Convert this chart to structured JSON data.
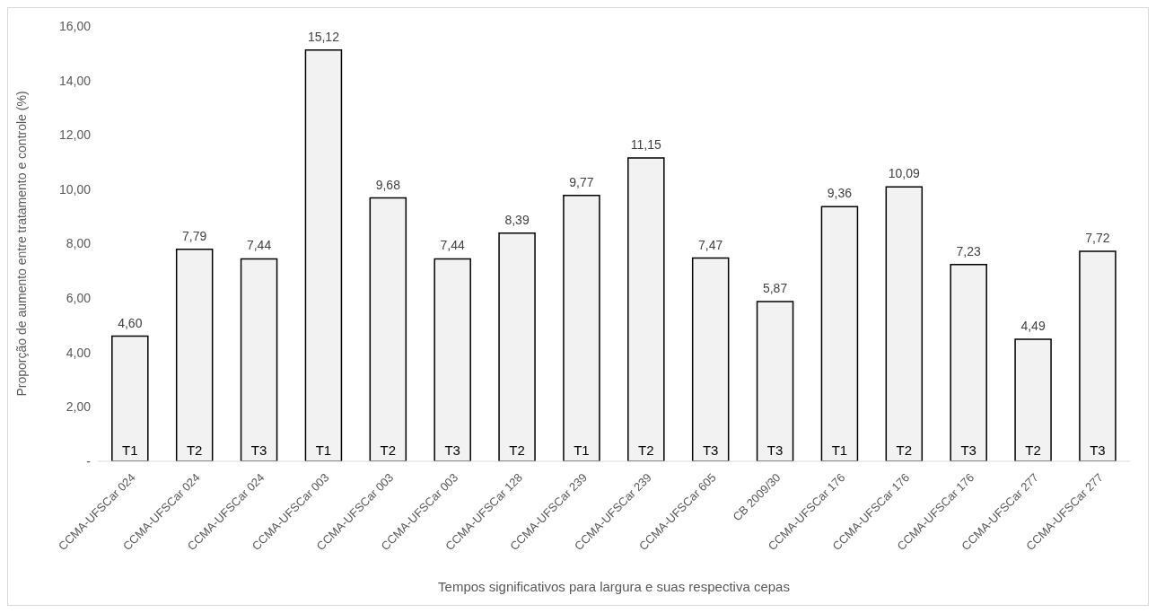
{
  "chart_data": {
    "type": "bar",
    "xlabel": "Tempos significativos para largura e suas respectiva cepas",
    "ylabel": "Proporção de aumento entre tratamento e controle (%)",
    "categories": [
      "CCMA-UFSCar 024",
      "CCMA-UFSCar 024",
      "CCMA-UFSCar 024",
      "CCMA-UFSCar 003",
      "CCMA-UFSCar 003",
      "CCMA-UFSCar 003",
      "CCMA-UFSCar 128",
      "CCMA-UFSCar 239",
      "CCMA-UFSCar 239",
      "CCMA-UFSCar 605",
      "CB 2009/30",
      "CCMA-UFSCar 176",
      "CCMA-UFSCar 176",
      "CCMA-UFSCar 176",
      "CCMA-UFSCar 277",
      "CCMA-UFSCar 277"
    ],
    "values": [
      4.6,
      7.79,
      7.44,
      15.12,
      9.68,
      7.44,
      8.39,
      9.77,
      11.15,
      7.47,
      5.87,
      9.36,
      10.09,
      7.23,
      4.49,
      7.72
    ],
    "value_labels": [
      "4,60",
      "7,79",
      "7,44",
      "15,12",
      "9,68",
      "7,44",
      "8,39",
      "9,77",
      "11,15",
      "7,47",
      "5,87",
      "9,36",
      "10,09",
      "7,23",
      "4,49",
      "7,72"
    ],
    "color": "#f2f2f2",
    "ylim": [
      0,
      16
    ],
    "yticks": [
      {
        "value": 0,
        "label": "-"
      },
      {
        "value": 2,
        "label": "2,00"
      },
      {
        "value": 4,
        "label": "4,00"
      },
      {
        "value": 6,
        "label": "6,00"
      },
      {
        "value": 8,
        "label": "8,00"
      },
      {
        "value": 10,
        "label": "10,00"
      },
      {
        "value": 12,
        "label": "12,00"
      },
      {
        "value": 14,
        "label": "14,00"
      },
      {
        "value": 16,
        "label": "16,00"
      }
    ],
    "annotations": [
      "T1",
      "T2",
      "T3",
      "T1",
      "T2",
      "T3",
      "T2",
      "T1",
      "T2",
      "T3",
      "T3",
      "T1",
      "T2",
      "T3",
      "T2",
      "T3"
    ],
    "grid": false,
    "legend": false
  }
}
